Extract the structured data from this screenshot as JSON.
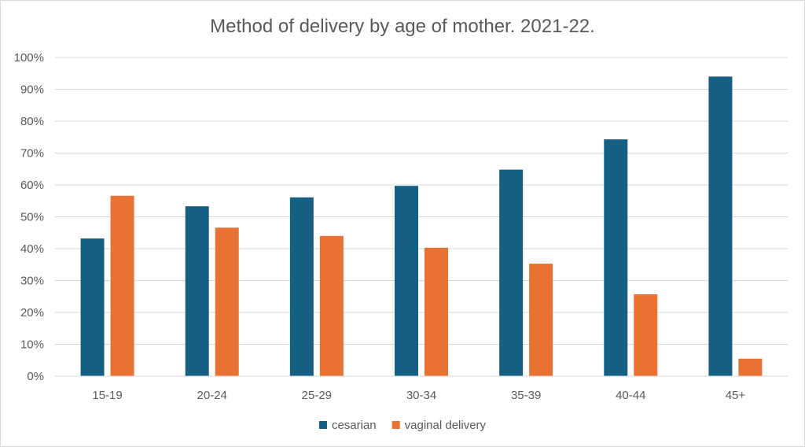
{
  "chart_data": {
    "type": "bar",
    "title": "Method of delivery by age of mother. 2021-22.",
    "xlabel": "",
    "ylabel": "",
    "categories": [
      "15-19",
      "20-24",
      "25-29",
      "30-34",
      "35-39",
      "40-44",
      "45+"
    ],
    "series": [
      {
        "name": "cesarian",
        "color": "#156082",
        "values": [
          43.2,
          53.3,
          56.1,
          59.7,
          64.8,
          74.3,
          94.0
        ]
      },
      {
        "name": "vaginal delivery",
        "color": "#e97132",
        "values": [
          56.6,
          46.6,
          44.0,
          40.3,
          35.3,
          25.7,
          5.5
        ]
      }
    ],
    "ylim": [
      0,
      100
    ],
    "yticks": [
      "0%",
      "10%",
      "20%",
      "30%",
      "40%",
      "50%",
      "60%",
      "70%",
      "80%",
      "90%",
      "100%"
    ],
    "grid": true,
    "legend": "bottom-center",
    "grid_color": "#d9d9d9"
  }
}
